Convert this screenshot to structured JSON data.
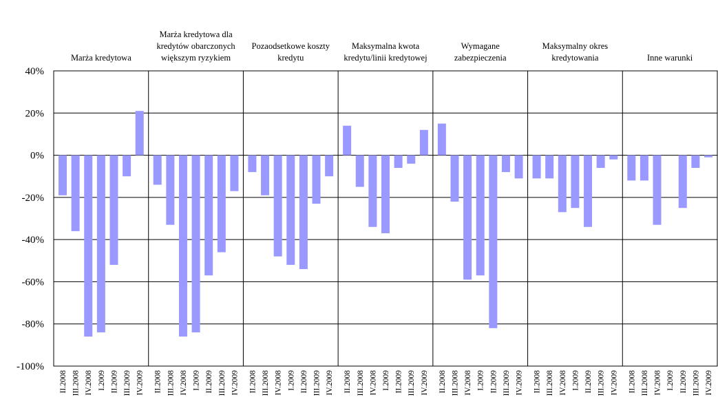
{
  "chart_data": {
    "type": "bar",
    "color": "#9999ff",
    "grid": true,
    "categories": [
      "II.2008",
      "III.2008",
      "IV.2008",
      "I.2009",
      "II.2009",
      "III.2009",
      "IV.2009"
    ],
    "ylim": [
      -100,
      40
    ],
    "yticks": [
      {
        "value": 40,
        "label": "40%"
      },
      {
        "value": 20,
        "label": "20%"
      },
      {
        "value": 0,
        "label": "0%"
      },
      {
        "value": -20,
        "label": "-20%"
      },
      {
        "value": -40,
        "label": "-40%"
      },
      {
        "value": -60,
        "label": "-60%"
      },
      {
        "value": -80,
        "label": "-80%"
      },
      {
        "value": -100,
        "label": "-100%"
      }
    ],
    "panels": [
      {
        "title": "Marża kredytowa",
        "values": [
          -19,
          -36,
          -86,
          -84,
          -52,
          -10,
          21
        ]
      },
      {
        "title": "Marża kredytowa dla kredytów obarczonych większym ryzykiem",
        "values": [
          -14,
          -33,
          -86,
          -84,
          -57,
          -46,
          -17
        ]
      },
      {
        "title": "Pozaodsetkowe koszty kredytu",
        "values": [
          -8,
          -19,
          -48,
          -52,
          -54,
          -23,
          -10
        ]
      },
      {
        "title": "Maksymalna kwota kredytu/linii kredytowej",
        "values": [
          14,
          -15,
          -34,
          -37,
          -6,
          -4,
          12
        ]
      },
      {
        "title": "Wymagane zabezpieczenia",
        "values": [
          15,
          -22,
          -59,
          -57,
          -82,
          -8,
          -11
        ]
      },
      {
        "title": "Maksymalny okres kredytowania",
        "values": [
          -11,
          -11,
          -27,
          -25,
          -34,
          -6,
          -2
        ]
      },
      {
        "title": "Inne warunki",
        "values": [
          -12,
          -12,
          -33,
          0,
          -25,
          -6,
          -1
        ]
      }
    ]
  }
}
